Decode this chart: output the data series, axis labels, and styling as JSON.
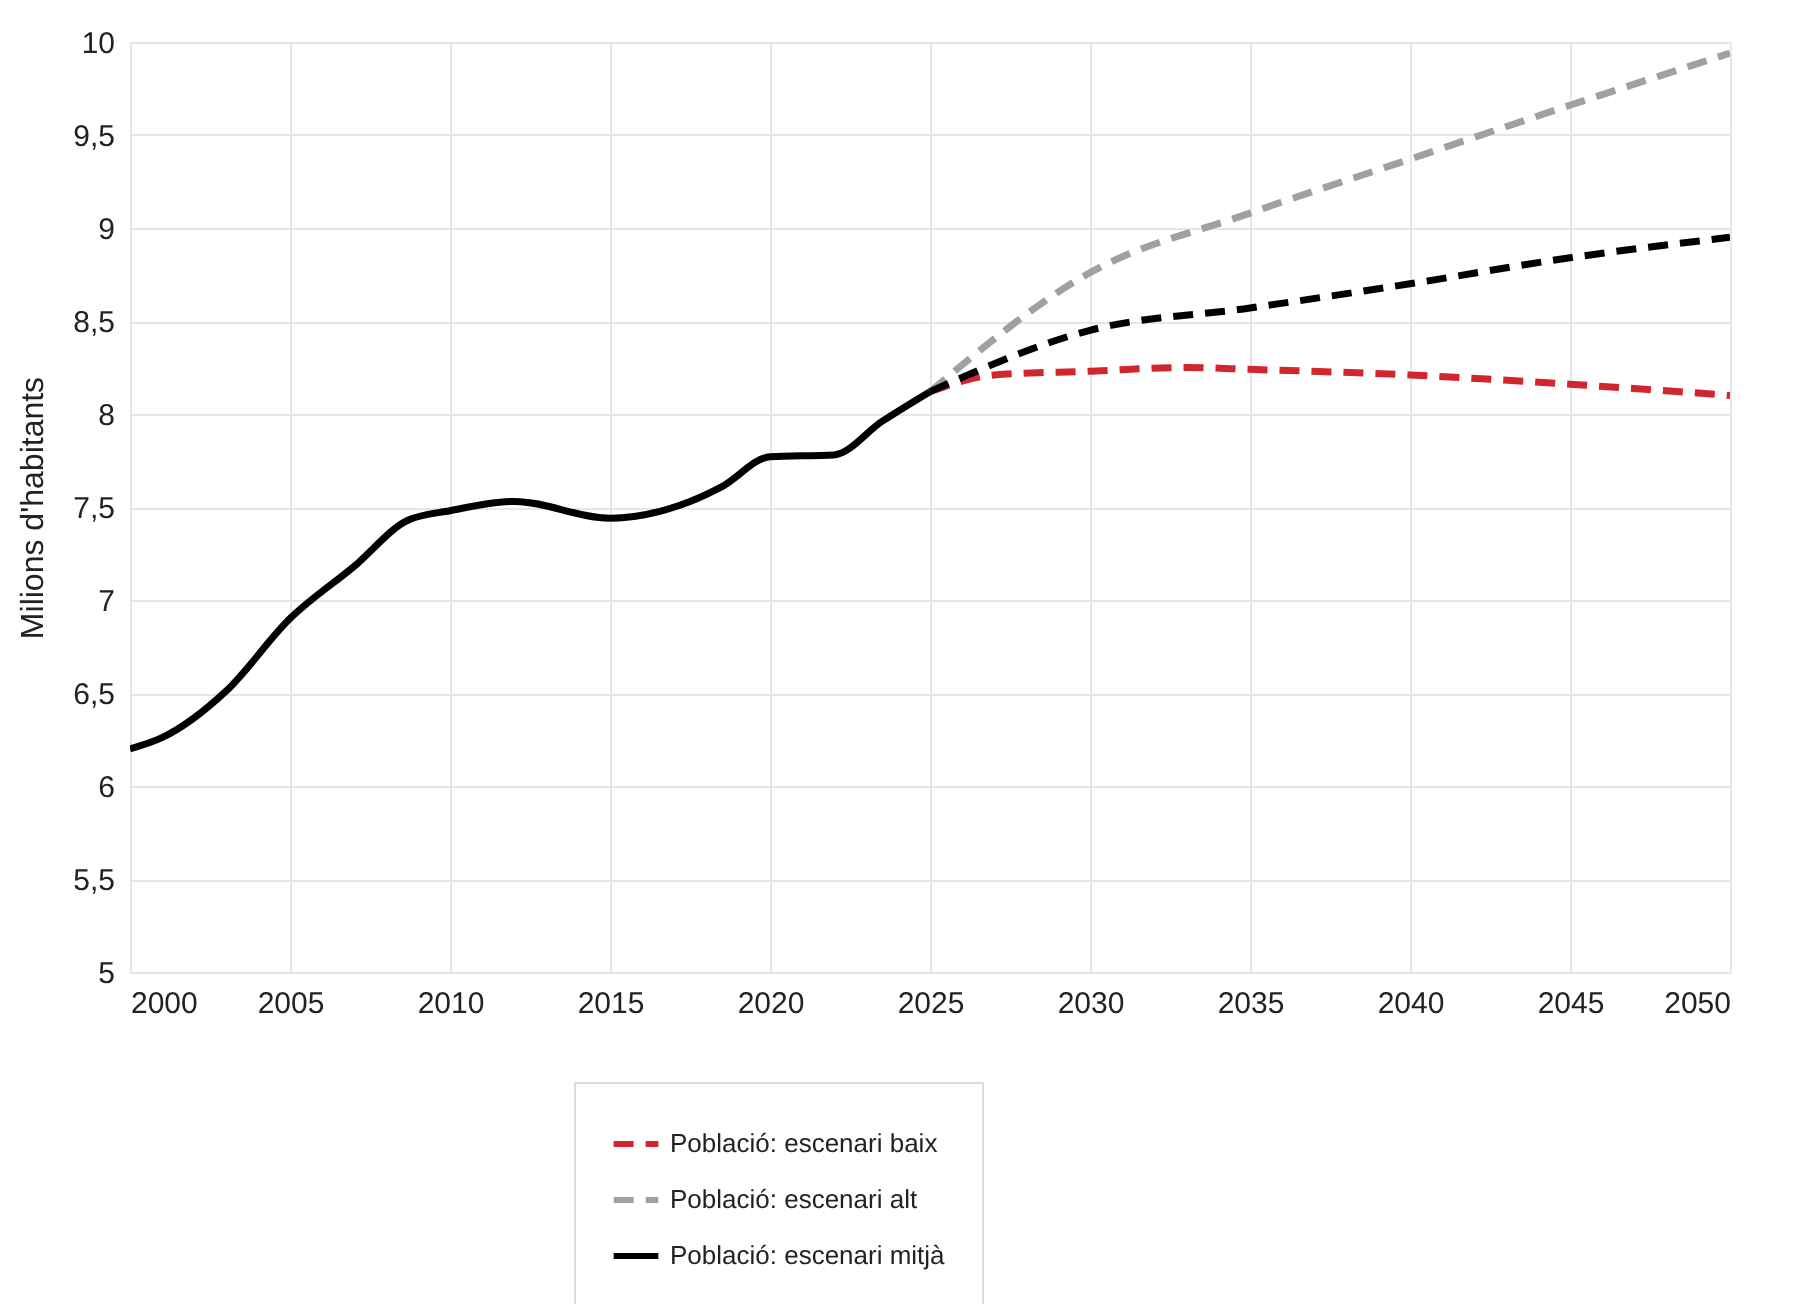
{
  "chart_data": {
    "type": "line",
    "ylabel": "Milions d'habitants",
    "xlim": [
      2000,
      2050
    ],
    "xticks": [
      2000,
      2005,
      2010,
      2015,
      2020,
      2025,
      2030,
      2035,
      2040,
      2045,
      2050
    ],
    "ylim": [
      5,
      10
    ],
    "yticks": [
      {
        "value": 5,
        "label": "5"
      },
      {
        "value": 5.5,
        "label": "5,5"
      },
      {
        "value": 6,
        "label": "6"
      },
      {
        "value": 6.5,
        "label": "6,5"
      },
      {
        "value": 7,
        "label": "7"
      },
      {
        "value": 7.5,
        "label": "7,5"
      },
      {
        "value": 8,
        "label": "8"
      },
      {
        "value": 8.5,
        "label": "8,5"
      },
      {
        "value": 9,
        "label": "9"
      },
      {
        "value": 9.5,
        "label": "9,5"
      },
      {
        "value": 10,
        "label": "10"
      }
    ],
    "grid": true,
    "legend": "bottom",
    "series": [
      {
        "name": "Població: escenari baix",
        "color": "#d0262e",
        "line_style": "dashed",
        "x": [
          2025,
          2027,
          2030,
          2033,
          2035,
          2040,
          2045,
          2050
        ],
        "values": [
          8.12,
          8.21,
          8.23,
          8.25,
          8.24,
          8.21,
          8.16,
          8.1
        ]
      },
      {
        "name": "Població: escenari alt",
        "color": "#a0a0a0",
        "line_style": "dashed",
        "x": [
          2025,
          2030,
          2035,
          2040,
          2045,
          2050
        ],
        "values": [
          8.12,
          8.76,
          9.08,
          9.37,
          9.66,
          9.94
        ]
      },
      {
        "name": "Població: escenari mitjà",
        "color": "#000000",
        "line_style": "solid",
        "x": [
          2000,
          2001,
          2003,
          2005,
          2007,
          2008.7,
          2010,
          2012,
          2015,
          2017.5,
          2018.5,
          2020,
          2022,
          2023.5,
          2025
        ],
        "values": [
          6.2,
          6.26,
          6.51,
          6.9,
          7.18,
          7.43,
          7.48,
          7.53,
          7.44,
          7.53,
          7.61,
          7.77,
          7.78,
          7.96,
          8.12
        ]
      },
      {
        "color": "#000000",
        "line_style": "dashed",
        "x": [
          2025,
          2030,
          2035,
          2040,
          2045,
          2050
        ],
        "values": [
          8.12,
          8.45,
          8.57,
          8.7,
          8.84,
          8.95
        ]
      }
    ]
  }
}
